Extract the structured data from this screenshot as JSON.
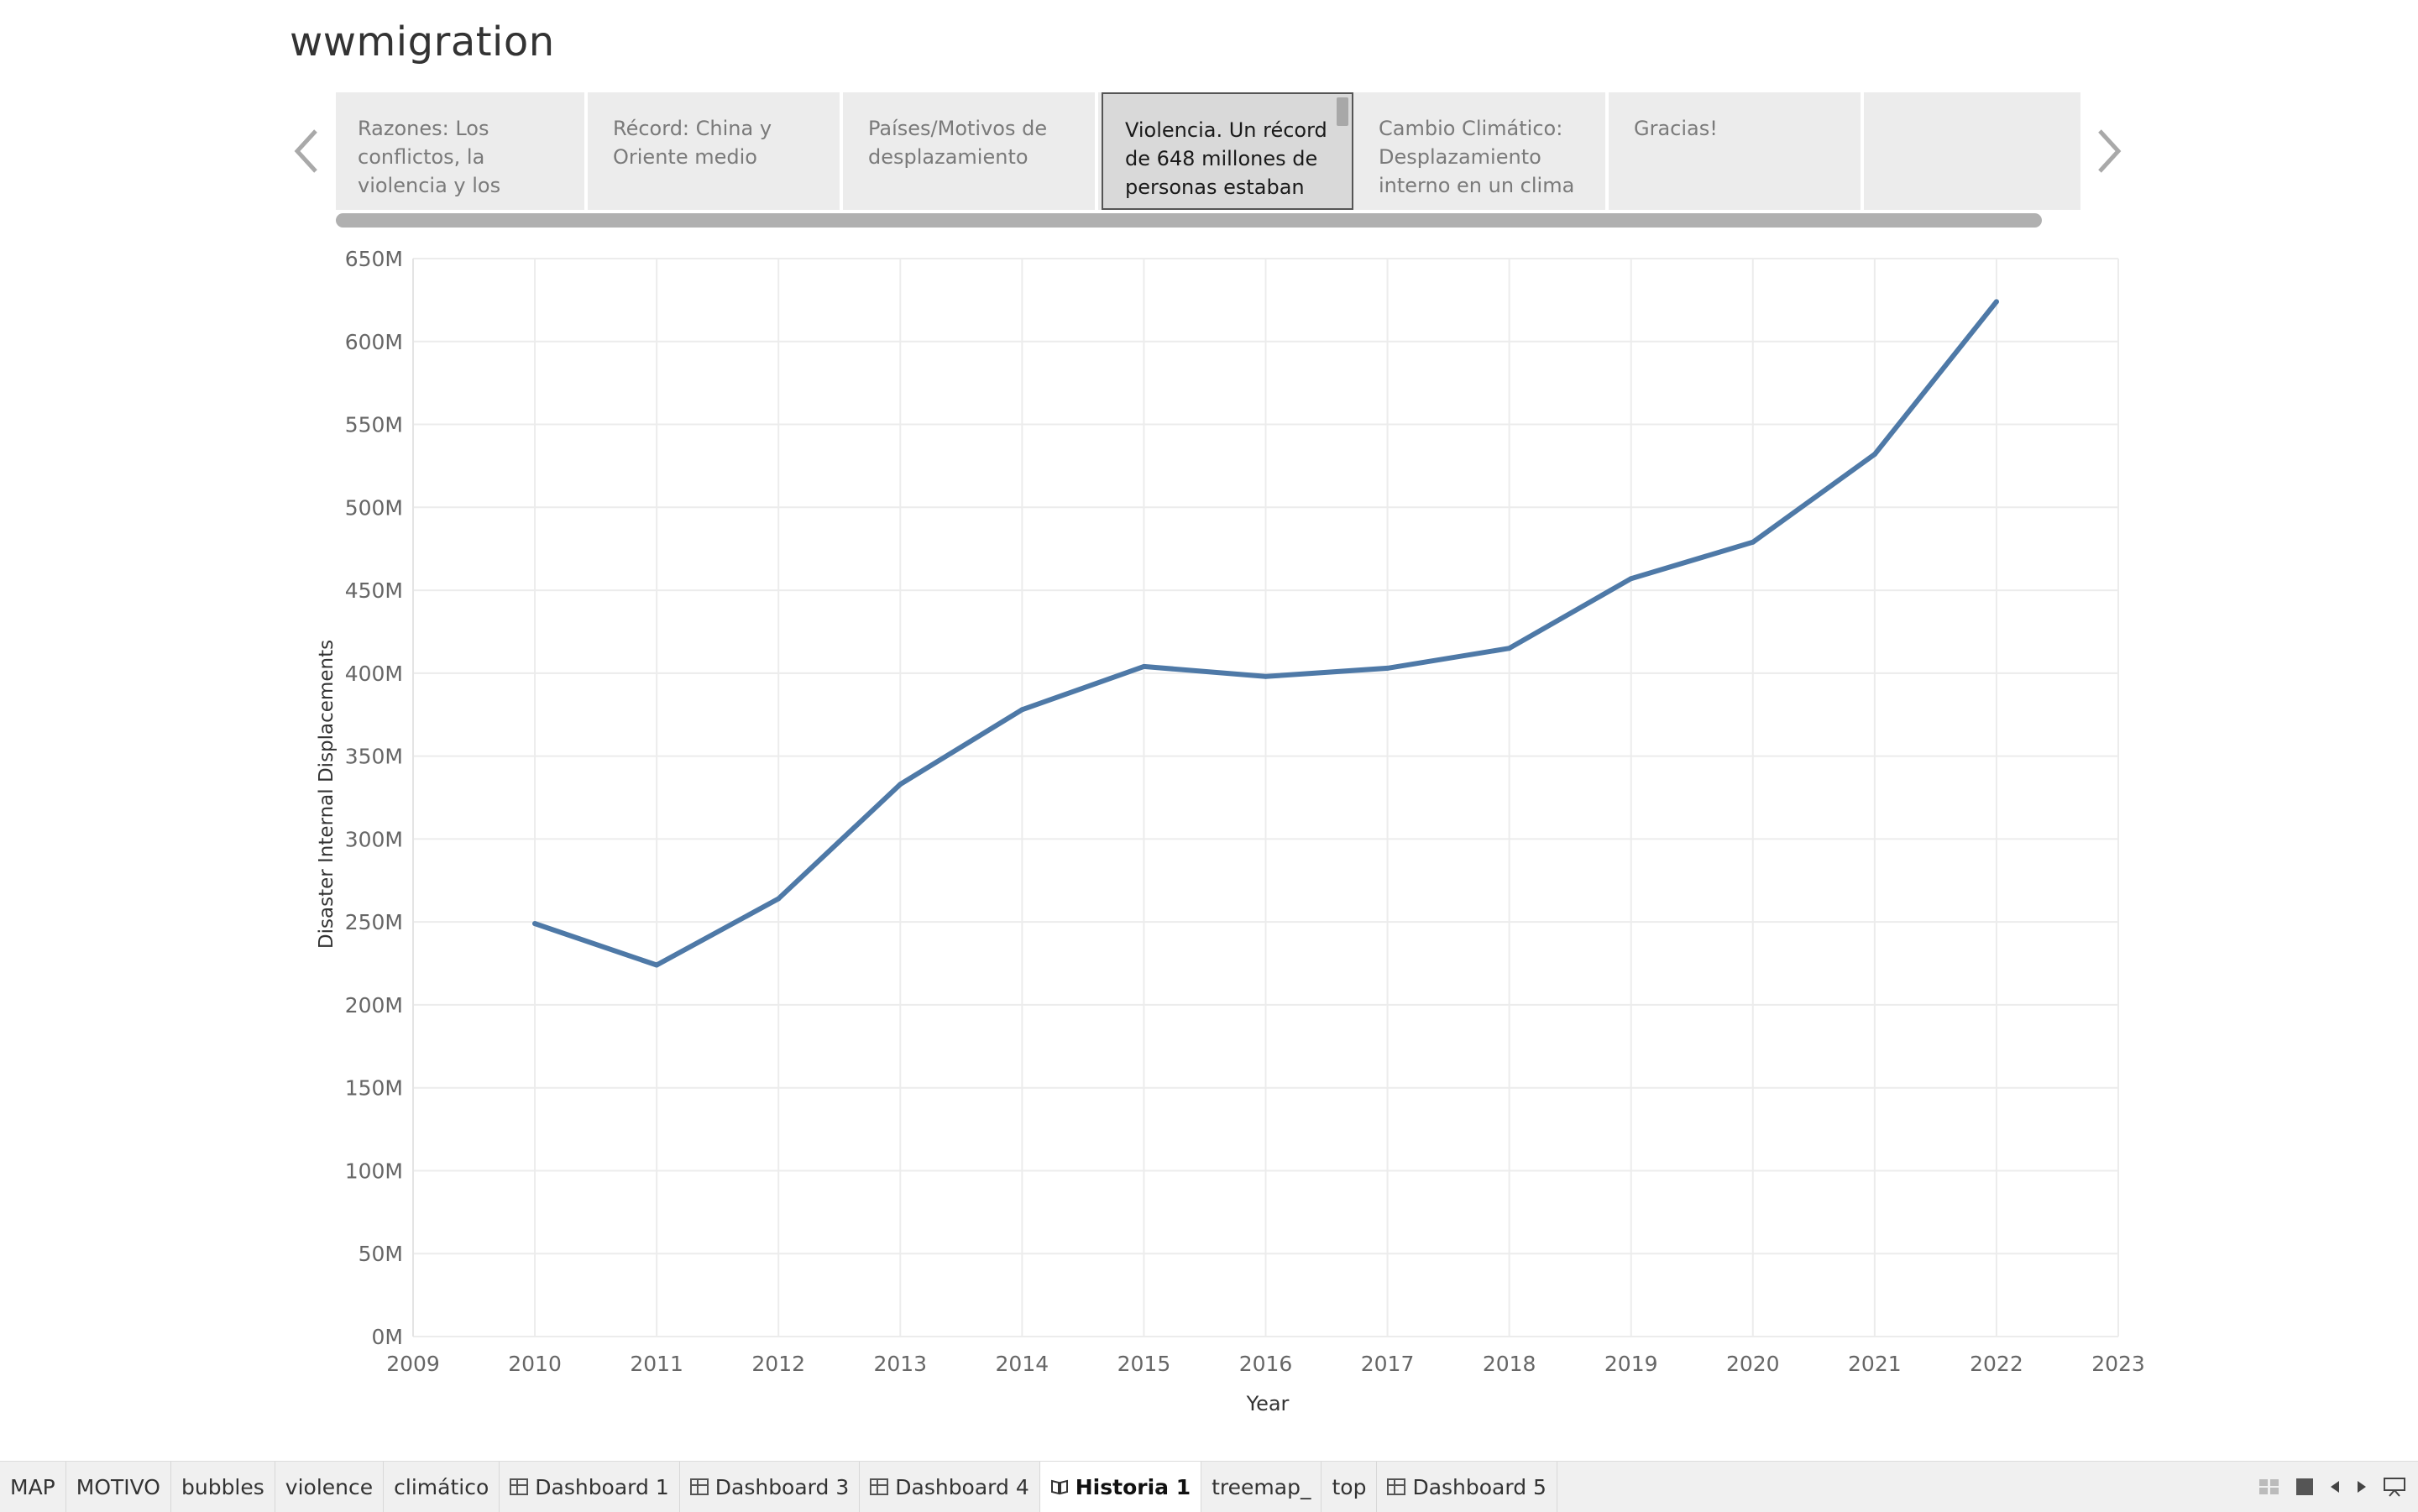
{
  "story": {
    "title": "wwmigration",
    "points": [
      {
        "text": "Razones: Los conflictos, la violencia y los"
      },
      {
        "text": "Récord: China y Oriente medio"
      },
      {
        "text": "Países/Motivos de desplazamiento"
      },
      {
        "text": "Violencia. Un récord de 648 millones de personas estaban"
      },
      {
        "text": "Cambio Climático: Desplazamiento interno en un clima"
      },
      {
        "text": "Gracias!"
      },
      {
        "text": ""
      }
    ],
    "active_index": 3
  },
  "chart_data": {
    "type": "line",
    "xlabel": "Year",
    "ylabel": "Disaster Internal Displacements",
    "x_ticks": [
      "2009",
      "2010",
      "2011",
      "2012",
      "2013",
      "2014",
      "2015",
      "2016",
      "2017",
      "2018",
      "2019",
      "2020",
      "2021",
      "2022",
      "2023"
    ],
    "y_ticks": [
      "650M",
      "600M",
      "550M",
      "500M",
      "450M",
      "400M",
      "350M",
      "300M",
      "250M",
      "200M",
      "150M",
      "100M",
      "50M",
      "0M"
    ],
    "xlim": [
      2009,
      2023
    ],
    "ylim": [
      0,
      650000000
    ],
    "grid": true,
    "series": [
      {
        "color": "#4e79a7",
        "x": [
          2010,
          2011,
          2012,
          2013,
          2014,
          2015,
          2016,
          2017,
          2018,
          2019,
          2020,
          2021,
          2022
        ],
        "y": [
          249000000,
          224000000,
          264000000,
          333000000,
          378000000,
          404000000,
          398000000,
          403000000,
          415000000,
          457000000,
          479000000,
          532000000,
          624000000
        ]
      }
    ]
  },
  "tabs": [
    {
      "label": "MAP",
      "icon": ""
    },
    {
      "label": "MOTIVO",
      "icon": ""
    },
    {
      "label": "bubbles",
      "icon": ""
    },
    {
      "label": "violence",
      "icon": ""
    },
    {
      "label": "climático",
      "icon": ""
    },
    {
      "label": "Dashboard 1",
      "icon": "dashboard-icon"
    },
    {
      "label": "Dashboard 3",
      "icon": "dashboard-icon"
    },
    {
      "label": "Dashboard 4",
      "icon": "dashboard-icon"
    },
    {
      "label": "Historia 1",
      "icon": "story-icon",
      "active": true
    },
    {
      "label": "treemap_",
      "icon": ""
    },
    {
      "label": "top",
      "icon": ""
    },
    {
      "label": "Dashboard 5",
      "icon": "dashboard-icon"
    }
  ],
  "controls": [
    "sheet-sorter-icon",
    "filmstrip-icon",
    "prev-sheet-icon",
    "next-sheet-icon",
    "presentation-mode-icon"
  ]
}
